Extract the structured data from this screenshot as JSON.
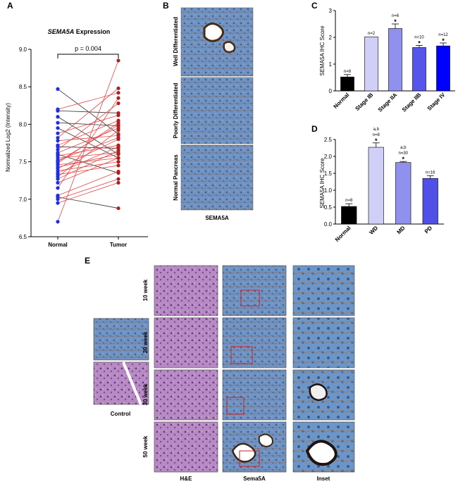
{
  "colors": {
    "normal": "#1f2fe0",
    "tumor": "#b01f1f",
    "up_line": "#e64545",
    "down_line": "#333333",
    "he_stain": "#b07ab8",
    "ihc_blue": "#5d86b8",
    "ihc_brown": "#7a4a2a"
  },
  "panels": {
    "A": {
      "letter": "A",
      "title": "SEMA5A Expression",
      "title_italic": "SEMA5A",
      "title_rest": " Expression",
      "pvalue": "p = 0.004",
      "ylabel": "Normalized Log2 (Intensity)"
    },
    "B": {
      "letter": "B",
      "rows": [
        "Well Differentiated",
        "Poorly Differentiated",
        "Normal Pancreas"
      ],
      "xlabel": "SEMA5A"
    },
    "C": {
      "letter": "C",
      "ylabel": "SEMA5A IHC Score"
    },
    "D": {
      "letter": "D",
      "ylabel": "SEMA5A IHC Score"
    },
    "E": {
      "letter": "E",
      "weeks": [
        "10 week",
        "20 week",
        "30 week",
        "50 week"
      ],
      "columns": [
        "H&E",
        "Sema5A",
        "Inset"
      ],
      "control_label": "Control"
    }
  },
  "chart_data": [
    {
      "type": "scatter",
      "panel": "A",
      "title": "SEMA5A Expression",
      "categories": [
        "Normal",
        "Tumor"
      ],
      "ylabel": "Normalized Log2 (Intensity)",
      "ylim": [
        6.5,
        9.0
      ],
      "yticks": [
        6.5,
        7.0,
        7.5,
        8.0,
        8.5,
        9.0
      ],
      "annotation": "p = 0.004",
      "pairs": [
        [
          8.47,
          7.87
        ],
        [
          8.2,
          8.42
        ],
        [
          8.18,
          8.15
        ],
        [
          8.1,
          7.6
        ],
        [
          8.02,
          7.98
        ],
        [
          7.95,
          7.55
        ],
        [
          7.88,
          8.12
        ],
        [
          7.82,
          8.48
        ],
        [
          7.78,
          7.85
        ],
        [
          7.72,
          8.05
        ],
        [
          7.7,
          7.68
        ],
        [
          7.66,
          8.28
        ],
        [
          7.62,
          7.95
        ],
        [
          7.6,
          7.35
        ],
        [
          7.58,
          7.72
        ],
        [
          7.55,
          7.62
        ],
        [
          7.52,
          7.82
        ],
        [
          7.5,
          7.99
        ],
        [
          7.48,
          8.02
        ],
        [
          7.46,
          7.55
        ],
        [
          7.43,
          7.6
        ],
        [
          7.41,
          7.8
        ],
        [
          7.38,
          7.5
        ],
        [
          7.35,
          7.7
        ],
        [
          7.33,
          7.45
        ],
        [
          7.3,
          7.92
        ],
        [
          7.27,
          7.65
        ],
        [
          7.22,
          7.55
        ],
        [
          7.15,
          8.35
        ],
        [
          7.05,
          7.37
        ],
        [
          7.03,
          6.88
        ],
        [
          7.0,
          7.27
        ],
        [
          6.95,
          7.22
        ],
        [
          6.7,
          8.85
        ]
      ]
    },
    {
      "type": "bar",
      "panel": "C",
      "categories": [
        "Normal",
        "Stage IB",
        "Stage IIA",
        "Stage IIB",
        "Stage IV"
      ],
      "values": [
        0.52,
        2.02,
        2.33,
        1.62,
        1.68
      ],
      "errors": [
        0.09,
        0,
        0.17,
        0.08,
        0.11
      ],
      "counts": [
        "n=8",
        "n=2",
        "n=6",
        "n=10",
        "n=12"
      ],
      "significant": [
        false,
        false,
        true,
        true,
        true
      ],
      "ylabel": "SEMA5A IHC Score",
      "ylim": [
        0,
        3
      ],
      "yticks": [
        0,
        1,
        2,
        3
      ],
      "colors": [
        "#000000",
        "#cfcff7",
        "#9090ee",
        "#5555ec",
        "#0000ff"
      ]
    },
    {
      "type": "bar",
      "panel": "D",
      "categories": [
        "Normal",
        "WD",
        "MD",
        "PD"
      ],
      "values": [
        0.52,
        2.27,
        1.82,
        1.35
      ],
      "errors": [
        0.08,
        0.13,
        0.03,
        0.08
      ],
      "counts": [
        "n=8",
        "n=8",
        "n=30",
        "n=16"
      ],
      "marks": [
        "",
        "a,b",
        "a,b",
        ""
      ],
      "significant": [
        false,
        true,
        true,
        false
      ],
      "ylabel": "SEMA5A IHC Score",
      "ylim": [
        0,
        2.5
      ],
      "yticks": [
        0.0,
        0.5,
        1.0,
        1.5,
        2.0,
        2.5
      ],
      "colors": [
        "#000000",
        "#cfcff7",
        "#9090ee",
        "#5050e8"
      ]
    }
  ]
}
